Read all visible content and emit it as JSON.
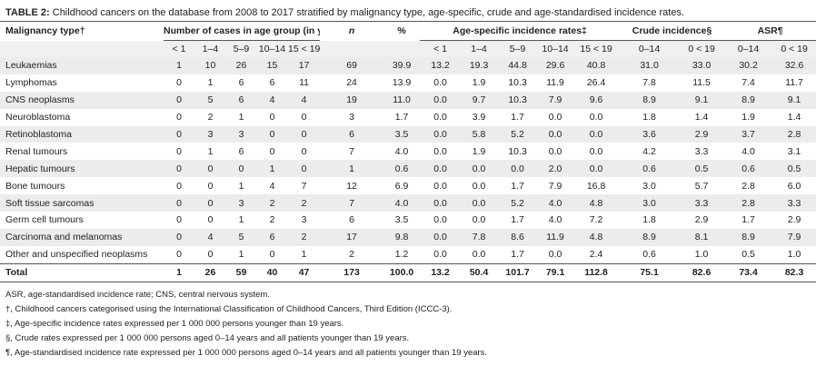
{
  "title": {
    "label": "TABLE 2:",
    "text": "Childhood cancers on the database from 2008 to 2017 stratified by malignancy type, age-specific, crude and age-standardised incidence rates."
  },
  "table": {
    "header_groups": [
      "Malignancy type†",
      "Number of cases in age group (in years)",
      "n",
      "%",
      "Age-specific incidence rates‡",
      "Crude incidence§",
      "ASR¶"
    ],
    "subheaders": [
      "< 1",
      "1–4",
      "5–9",
      "10–14",
      "15 < 19",
      "< 1",
      "1–4",
      "5–9",
      "10–14",
      "15 < 19",
      "0–14",
      "0 < 19",
      "0–14",
      "0 < 19"
    ],
    "rows": [
      [
        "Leukaemias",
        "1",
        "10",
        "26",
        "15",
        "17",
        "69",
        "39.9",
        "13.2",
        "19.3",
        "44.8",
        "29.6",
        "40.8",
        "31.0",
        "33.0",
        "30.2",
        "32.6"
      ],
      [
        "Lymphomas",
        "0",
        "1",
        "6",
        "6",
        "11",
        "24",
        "13.9",
        "0.0",
        "1.9",
        "10.3",
        "11.9",
        "26.4",
        "7.8",
        "11.5",
        "7.4",
        "11.7"
      ],
      [
        "CNS neoplasms",
        "0",
        "5",
        "6",
        "4",
        "4",
        "19",
        "11.0",
        "0.0",
        "9.7",
        "10.3",
        "7.9",
        "9.6",
        "8.9",
        "9.1",
        "8.9",
        "9.1"
      ],
      [
        "Neuroblastoma",
        "0",
        "2",
        "1",
        "0",
        "0",
        "3",
        "1.7",
        "0.0",
        "3.9",
        "1.7",
        "0.0",
        "0.0",
        "1.8",
        "1.4",
        "1.9",
        "1.4"
      ],
      [
        "Retinoblastoma",
        "0",
        "3",
        "3",
        "0",
        "0",
        "6",
        "3.5",
        "0.0",
        "5.8",
        "5.2",
        "0.0",
        "0.0",
        "3.6",
        "2.9",
        "3.7",
        "2.8"
      ],
      [
        "Renal tumours",
        "0",
        "1",
        "6",
        "0",
        "0",
        "7",
        "4.0",
        "0.0",
        "1.9",
        "10.3",
        "0.0",
        "0.0",
        "4.2",
        "3.3",
        "4.0",
        "3.1"
      ],
      [
        "Hepatic tumours",
        "0",
        "0",
        "0",
        "1",
        "0",
        "1",
        "0.6",
        "0.0",
        "0.0",
        "0.0",
        "2.0",
        "0.0",
        "0.6",
        "0.5",
        "0.6",
        "0.5"
      ],
      [
        "Bone tumours",
        "0",
        "0",
        "1",
        "4",
        "7",
        "12",
        "6.9",
        "0.0",
        "0.0",
        "1.7",
        "7.9",
        "16.8",
        "3.0",
        "5.7",
        "2.8",
        "6.0"
      ],
      [
        "Soft tissue sarcomas",
        "0",
        "0",
        "3",
        "2",
        "2",
        "7",
        "4.0",
        "0.0",
        "0.0",
        "5.2",
        "4.0",
        "4.8",
        "3.0",
        "3.3",
        "2.8",
        "3.3"
      ],
      [
        "Germ cell tumours",
        "0",
        "0",
        "1",
        "2",
        "3",
        "6",
        "3.5",
        "0.0",
        "0.0",
        "1.7",
        "4.0",
        "7.2",
        "1.8",
        "2.9",
        "1.7",
        "2.9"
      ],
      [
        "Carcinoma and melanomas",
        "0",
        "4",
        "5",
        "6",
        "2",
        "17",
        "9.8",
        "0.0",
        "7.8",
        "8.6",
        "11.9",
        "4.8",
        "8.9",
        "8.1",
        "8.9",
        "7.9"
      ],
      [
        "Other and unspecified neoplasms",
        "0",
        "0",
        "1",
        "0",
        "1",
        "2",
        "1.2",
        "0.0",
        "0.0",
        "1.7",
        "0.0",
        "2.4",
        "0.6",
        "1.0",
        "0.5",
        "1.0"
      ]
    ],
    "total": [
      "Total",
      "1",
      "26",
      "59",
      "40",
      "47",
      "173",
      "100.0",
      "13.2",
      "50.4",
      "101.7",
      "79.1",
      "112.8",
      "75.1",
      "82.6",
      "73.4",
      "82.3"
    ]
  },
  "footnotes": [
    "ASR, age-standardised incidence rate; CNS, central nervous system.",
    "†, Childhood cancers categorised using the International Classification of Childhood Cancers, Third Edition (ICCC-3).",
    "‡, Age-specific incidence rates expressed per 1 000 000 persons younger than 19 years.",
    "§, Crude rates expressed per 1 000 000 persons aged 0–14 years and all patients younger than 19 years.",
    "¶, Age-standardised incidence rate expressed per 1 000 000 persons aged 0–14 years and all patients younger than 19 years."
  ]
}
